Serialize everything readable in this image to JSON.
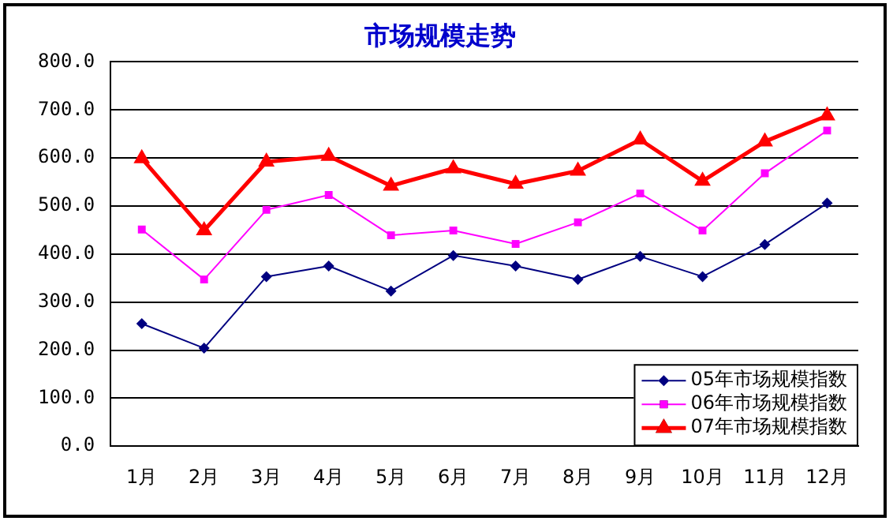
{
  "chart_data": {
    "type": "line",
    "title": "市场规模走势",
    "categories": [
      "1月",
      "2月",
      "3月",
      "4月",
      "5月",
      "6月",
      "7月",
      "8月",
      "9月",
      "10月",
      "11月",
      "12月"
    ],
    "series": [
      {
        "name": "05年市场规模指数",
        "color": "#000080",
        "marker": "diamond",
        "values": [
          255,
          204,
          353,
          375,
          323,
          397,
          375,
          347,
          395,
          353,
          420,
          506
        ]
      },
      {
        "name": "06年市场规模指数",
        "color": "#ff00ff",
        "marker": "square",
        "values": [
          451,
          347,
          492,
          523,
          439,
          449,
          421,
          466,
          526,
          449,
          568,
          657
        ]
      },
      {
        "name": "07年市场规模指数",
        "color": "#ff0000",
        "marker": "triangle",
        "values": [
          599,
          449,
          592,
          604,
          542,
          578,
          546,
          573,
          638,
          552,
          634,
          688
        ]
      }
    ],
    "ylim": [
      0,
      800
    ],
    "yticks": [
      {
        "value": 0,
        "label": "0.0"
      },
      {
        "value": 100,
        "label": "100.0"
      },
      {
        "value": 200,
        "label": "200.0"
      },
      {
        "value": 300,
        "label": "300.0"
      },
      {
        "value": 400,
        "label": "400.0"
      },
      {
        "value": 500,
        "label": "500.0"
      },
      {
        "value": 600,
        "label": "600.0"
      },
      {
        "value": 700,
        "label": "700.0"
      },
      {
        "value": 800,
        "label": "800.0"
      }
    ],
    "grid": "y",
    "legend": "bottom right"
  }
}
